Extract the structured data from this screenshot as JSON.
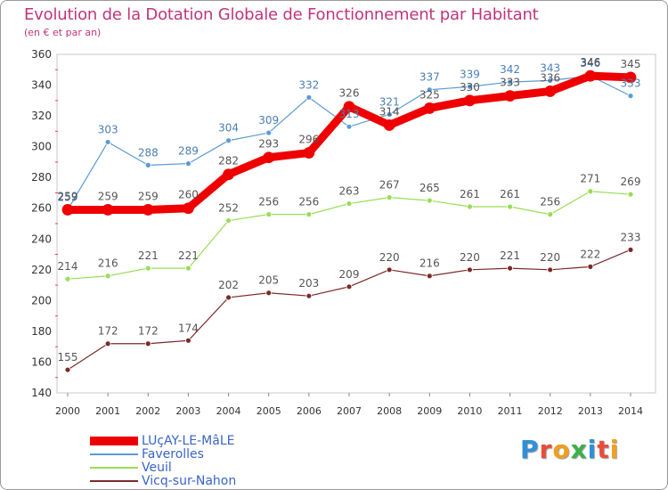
{
  "title": "Evolution de la Dotation Globale de Fonctionnement par Habitant",
  "subtitle": "(en € et par an)",
  "logo_text": "Proxiti",
  "chart_data": {
    "type": "line",
    "x": [
      "2000",
      "2001",
      "2002",
      "2003",
      "2004",
      "2005",
      "2006",
      "2007",
      "2008",
      "2009",
      "2010",
      "2011",
      "2012",
      "2013",
      "2014"
    ],
    "ylim": [
      140,
      360
    ],
    "yticks": [
      "140",
      "160",
      "180",
      "200",
      "220",
      "240",
      "260",
      "280",
      "300",
      "320",
      "340",
      "360"
    ],
    "grid": false,
    "legend_position": "bottom-left",
    "series": [
      {
        "name": "LUçAY-LE-MâLE",
        "color": "#ee0000",
        "values": [
          259,
          259,
          259,
          260,
          282,
          293,
          296,
          326,
          314,
          325,
          330,
          333,
          336,
          346,
          345
        ]
      },
      {
        "name": "Faverolles",
        "color": "#5b9bd5",
        "values": [
          259,
          303,
          288,
          289,
          304,
          309,
          332,
          313,
          321,
          337,
          339,
          342,
          343,
          346,
          333
        ]
      },
      {
        "name": "Veuil",
        "color": "#99dd55",
        "values": [
          214,
          216,
          221,
          221,
          252,
          256,
          256,
          263,
          267,
          265,
          261,
          261,
          256,
          271,
          269
        ]
      },
      {
        "name": "Vicq-sur-Nahon",
        "color": "#7b2a2a",
        "values": [
          155,
          172,
          172,
          174,
          202,
          205,
          203,
          209,
          220,
          216,
          220,
          221,
          220,
          222,
          233
        ]
      }
    ]
  }
}
